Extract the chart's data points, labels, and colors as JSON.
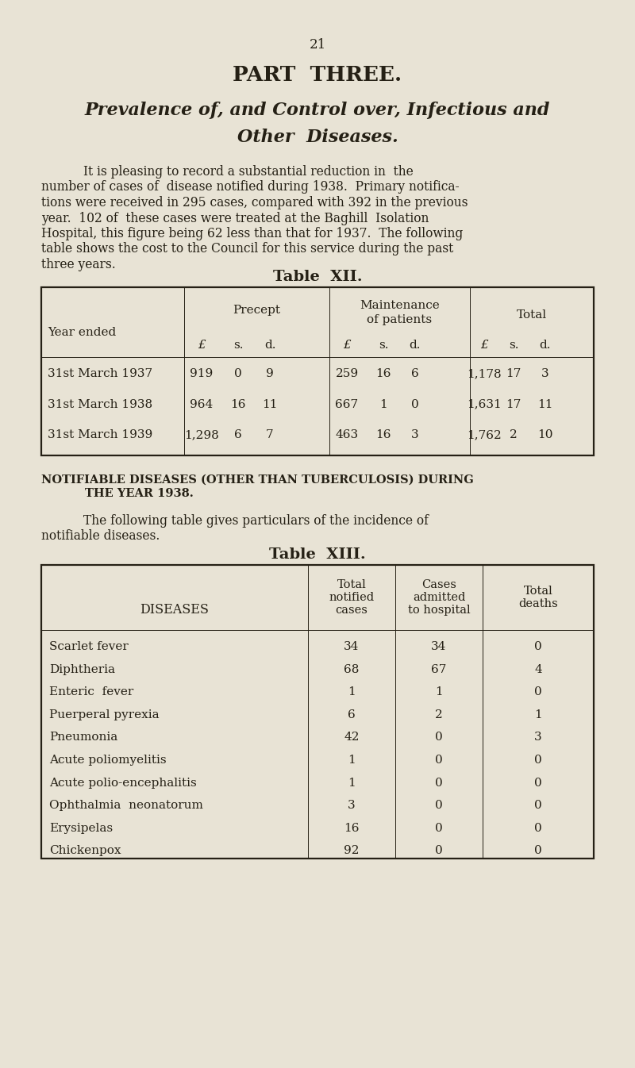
{
  "bg_color": "#e8e3d5",
  "text_color": "#252015",
  "page_number": "21",
  "title1": "PART  THREE.",
  "title2": "Prevalence of, and Control over, Infectious and",
  "title3": "Other  Diseases.",
  "para1_indent": "It is pleasing to record a substantial reduction in  the",
  "para1_lines": [
    "number of cases of  disease notified during 1938.  Primary notifica-",
    "tions were received in 295 cases, compared with 392 in the previous",
    "year.  102 of  these cases were treated at the Baghill  Isolation",
    "Hospital, this figure being 62 less than that for 1937.  The following",
    "table shows the cost to the Council for this service during the past",
    "three years."
  ],
  "table12_title": "Table  XII.",
  "table12_rows": [
    [
      "31st March 1937",
      "919",
      "0",
      "9",
      "259",
      "16",
      "6",
      "1,178",
      "17",
      "3"
    ],
    [
      "31st March 1938",
      "964",
      "16",
      "11",
      "667",
      "1",
      "0",
      "1,631",
      "17",
      "11"
    ],
    [
      "31st March 1939",
      "1,298",
      "6",
      "7",
      "463",
      "16",
      "3",
      "1,762",
      "2",
      "10"
    ]
  ],
  "section_line1": "NOTIFIABLE DISEASES (OTHER THAN TUBERCULOSIS) DURING",
  "section_line2": "THE YEAR 1938.",
  "para2_indent": "The following table gives particulars of the incidence of",
  "para2_line2": "notifiable diseases.",
  "table13_title": "Table  XIII.",
  "table13_rows": [
    [
      "Scarlet fever",
      "34",
      "34",
      "0"
    ],
    [
      "Diphtheria",
      "68",
      "67",
      "4"
    ],
    [
      "Enteric  fever",
      "1",
      "1",
      "0"
    ],
    [
      "Puerperal pyrexia",
      "6",
      "2",
      "1"
    ],
    [
      "Pneumonia",
      "42",
      "0",
      "3"
    ],
    [
      "Acute poliomyelitis",
      "1",
      "0",
      "0"
    ],
    [
      "Acute polio-encephalitis",
      "1",
      "0",
      "0"
    ],
    [
      "Ophthalmia  neonatorum",
      "3",
      "0",
      "0"
    ],
    [
      "Erysipelas",
      "16",
      "0",
      "0"
    ],
    [
      "Chickenpox",
      "92",
      "0",
      "0"
    ]
  ]
}
